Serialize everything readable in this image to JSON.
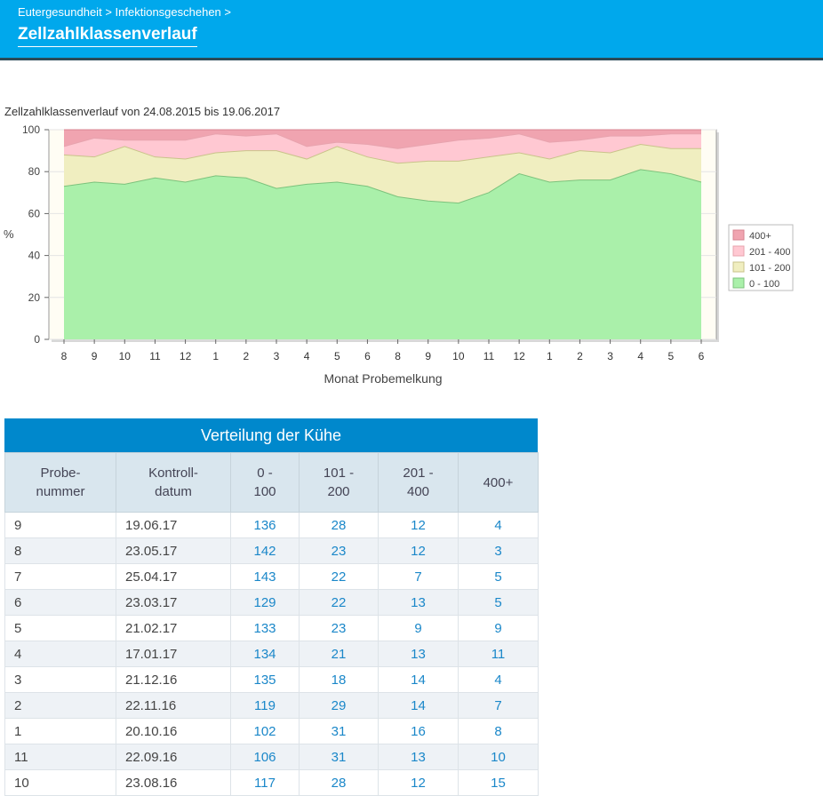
{
  "header": {
    "breadcrumb": [
      "Eutergesundheit",
      "Infektionsgeschehen"
    ],
    "separator": ">",
    "title": "Zellzahlklassenverlauf",
    "bg_color": "#00a8ec"
  },
  "chart": {
    "caption": "Zellzahlklassenverlauf von 24.08.2015 bis 19.06.2017"
  },
  "chart_data": {
    "type": "area",
    "stacked": true,
    "title": "Zellzahlklassenverlauf von 24.08.2015 bis 19.06.2017",
    "xlabel": "Monat Probemelkung",
    "ylabel": "%",
    "ylim": [
      0,
      100
    ],
    "yticks": [
      0,
      20,
      40,
      60,
      80,
      100
    ],
    "categories": [
      "8",
      "9",
      "10",
      "11",
      "12",
      "1",
      "2",
      "3",
      "4",
      "5",
      "6",
      "8",
      "9",
      "10",
      "11",
      "12",
      "1",
      "2",
      "3",
      "4",
      "5",
      "6"
    ],
    "series": [
      {
        "name": "0 - 100",
        "color": "#aaf0aa",
        "stroke": "#7cc27c",
        "values": [
          73,
          75,
          74,
          77,
          75,
          78,
          77,
          72,
          74,
          75,
          73,
          68,
          66,
          65,
          70,
          79,
          75,
          76,
          76,
          81,
          79,
          75
        ]
      },
      {
        "name": "101 - 200",
        "color": "#f0eec0",
        "stroke": "#c9c38a",
        "values": [
          15,
          12,
          18,
          10,
          11,
          11,
          13,
          18,
          12,
          17,
          14,
          16,
          19,
          20,
          17,
          10,
          11,
          14,
          13,
          12,
          12,
          16
        ]
      },
      {
        "name": "201 - 400",
        "color": "#ffc8d2",
        "stroke": "#e7a3ae",
        "values": [
          4,
          9,
          3,
          8,
          9,
          9,
          7,
          8,
          6,
          2,
          6,
          7,
          8,
          10,
          9,
          9,
          8,
          5,
          8,
          4,
          7,
          7
        ]
      },
      {
        "name": "400+",
        "color": "#f0a4b0",
        "stroke": "#d78391",
        "values": [
          8,
          4,
          5,
          5,
          5,
          2,
          3,
          2,
          8,
          6,
          7,
          9,
          7,
          5,
          4,
          2,
          6,
          5,
          3,
          3,
          2,
          2
        ]
      }
    ],
    "legend_order": [
      "400+",
      "201 - 400",
      "101 - 200",
      "0 - 100"
    ],
    "legend_position": "right",
    "grid": true
  },
  "table": {
    "title": "Verteilung der Kühe",
    "headers": [
      [
        "Probe-",
        "nummer"
      ],
      [
        "Kontroll-",
        "datum"
      ],
      [
        "0 -",
        "100"
      ],
      [
        "101 -",
        "200"
      ],
      [
        "201 -",
        "400"
      ],
      [
        "400+"
      ]
    ],
    "rows": [
      [
        "9",
        "19.06.17",
        "136",
        "28",
        "12",
        "4"
      ],
      [
        "8",
        "23.05.17",
        "142",
        "23",
        "12",
        "3"
      ],
      [
        "7",
        "25.04.17",
        "143",
        "22",
        "7",
        "5"
      ],
      [
        "6",
        "23.03.17",
        "129",
        "22",
        "13",
        "5"
      ],
      [
        "5",
        "21.02.17",
        "133",
        "23",
        "9",
        "9"
      ],
      [
        "4",
        "17.01.17",
        "134",
        "21",
        "13",
        "11"
      ],
      [
        "3",
        "21.12.16",
        "135",
        "18",
        "14",
        "4"
      ],
      [
        "2",
        "22.11.16",
        "119",
        "29",
        "14",
        "7"
      ],
      [
        "1",
        "20.10.16",
        "102",
        "31",
        "16",
        "8"
      ],
      [
        "11",
        "22.09.16",
        "106",
        "31",
        "13",
        "10"
      ],
      [
        "10",
        "23.08.16",
        "117",
        "28",
        "12",
        "15"
      ]
    ]
  }
}
